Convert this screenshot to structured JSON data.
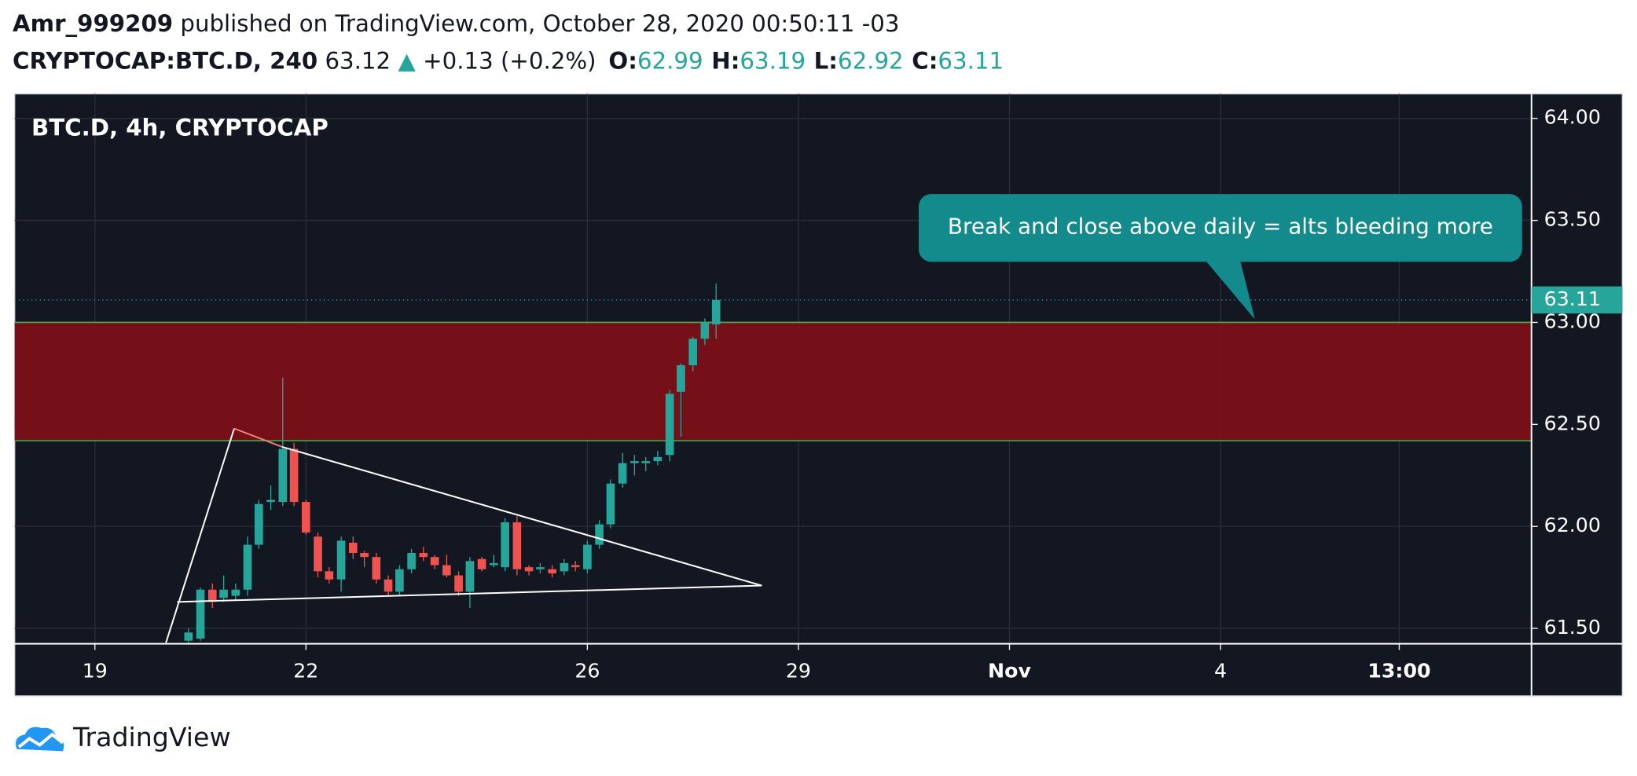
{
  "header": {
    "author": "Amr_999209",
    "published": "published on TradingView.com, October 28, 2020 00:50:11 -03",
    "symbol": "CRYPTOCAP:BTC.D, 240",
    "last": "63.12",
    "change": "+0.13 (+0.2%)",
    "ohlc": [
      {
        "label": "O:",
        "value": "62.99"
      },
      {
        "label": "H:",
        "value": "63.19"
      },
      {
        "label": "L:",
        "value": "62.92"
      },
      {
        "label": "C:",
        "value": "63.11"
      }
    ]
  },
  "chart_data": {
    "type": "candlestick",
    "title": "BTC.D, 4h, CRYPTOCAP",
    "up_color": "#26a69a",
    "down_color": "#ef5350",
    "x": [
      20.33,
      20.5,
      20.67,
      20.83,
      21,
      21.17,
      21.33,
      21.5,
      21.67,
      21.83,
      22,
      22.17,
      22.33,
      22.5,
      22.67,
      22.83,
      23,
      23.17,
      23.33,
      23.5,
      23.67,
      23.83,
      24,
      24.17,
      24.33,
      24.5,
      24.67,
      24.83,
      25,
      25.17,
      25.33,
      25.5,
      25.67,
      25.83,
      26,
      26.17,
      26.33,
      26.5,
      26.67,
      26.83,
      27,
      27.17,
      27.33,
      27.5,
      27.67,
      27.83
    ],
    "open": [
      61.44,
      61.45,
      61.69,
      61.65,
      61.66,
      61.69,
      61.91,
      62.12,
      62.12,
      62.38,
      62.12,
      61.95,
      61.78,
      61.74,
      61.92,
      61.87,
      61.85,
      61.74,
      61.68,
      61.79,
      61.87,
      61.85,
      61.81,
      61.76,
      61.68,
      61.84,
      61.81,
      61.8,
      62.02,
      61.8,
      61.79,
      61.79,
      61.78,
      61.81,
      61.79,
      61.91,
      62.01,
      62.21,
      62.31,
      62.31,
      62.32,
      62.35,
      62.66,
      62.79,
      62.92,
      62.99
    ],
    "high": [
      61.5,
      61.7,
      61.72,
      61.76,
      61.72,
      61.95,
      62.13,
      62.2,
      62.73,
      62.41,
      62.13,
      61.97,
      61.8,
      61.95,
      61.95,
      61.88,
      61.87,
      61.76,
      61.81,
      61.89,
      61.9,
      61.86,
      61.86,
      61.78,
      61.85,
      61.85,
      61.86,
      62.04,
      62.05,
      61.81,
      61.82,
      61.81,
      61.84,
      61.83,
      61.93,
      62.03,
      62.23,
      62.36,
      62.35,
      62.34,
      62.37,
      62.67,
      62.8,
      62.93,
      63.02,
      63.19
    ],
    "low": [
      61.42,
      61.44,
      61.6,
      61.63,
      61.64,
      61.66,
      61.89,
      62.08,
      62.1,
      62.1,
      61.96,
      61.75,
      61.72,
      61.68,
      61.84,
      61.8,
      61.72,
      61.66,
      61.66,
      61.77,
      61.83,
      61.79,
      61.75,
      61.66,
      61.6,
      61.78,
      61.8,
      61.78,
      61.76,
      61.76,
      61.77,
      61.75,
      61.76,
      61.78,
      61.77,
      61.89,
      61.99,
      62.19,
      62.25,
      62.27,
      62.3,
      62.32,
      62.44,
      62.76,
      62.89,
      62.92
    ],
    "close": [
      61.48,
      61.69,
      61.63,
      61.69,
      61.69,
      61.91,
      62.11,
      62.13,
      62.38,
      62.12,
      61.97,
      61.78,
      61.74,
      61.93,
      61.87,
      61.85,
      61.74,
      61.68,
      61.79,
      61.87,
      61.85,
      61.81,
      61.76,
      61.68,
      61.83,
      61.79,
      61.82,
      62.02,
      61.79,
      61.78,
      61.8,
      61.77,
      61.82,
      61.8,
      61.91,
      62.01,
      62.21,
      62.31,
      62.32,
      62.32,
      62.34,
      62.65,
      62.79,
      62.92,
      63.0,
      63.11
    ],
    "xlim": [
      17.86,
      39.42
    ],
    "xticks": [
      19,
      22,
      26,
      29,
      {
        "value": 32,
        "label": "Nov"
      },
      {
        "value": 35,
        "label": "4"
      },
      {
        "value": 37.54,
        "label": "13:00"
      }
    ],
    "ylim": [
      61.425,
      64.12
    ],
    "yticks": [
      {
        "value": 61.5,
        "label": "61.50"
      },
      {
        "value": 62,
        "label": "62.00"
      },
      {
        "value": 62.5,
        "label": "62.50"
      },
      {
        "value": 63,
        "label": "63.00"
      },
      {
        "value": 63.5,
        "label": "63.50"
      },
      {
        "value": 64,
        "label": "64.00"
      }
    ],
    "grid": true,
    "zone": {
      "from": 62.42,
      "to": 63.0,
      "color": "#7a0f18"
    },
    "trendlines": [
      {
        "x": [
          20.01,
          20.98
        ],
        "y": [
          61.43,
          62.48
        ],
        "color": "#ffffff"
      },
      {
        "x": [
          20.98,
          21.66
        ],
        "y": [
          62.48,
          62.39
        ],
        "color": "#ef7f7f"
      },
      {
        "x": [
          21.66,
          28.48
        ],
        "y": [
          62.39,
          61.71
        ],
        "color": "#ffffff"
      },
      {
        "x": [
          20.17,
          28.48
        ],
        "y": [
          61.63,
          61.71
        ],
        "color": "#ffffff"
      }
    ],
    "annotation": "Break and close above daily = alts bleeding more"
  },
  "footer": {
    "brand": "TradingView"
  }
}
